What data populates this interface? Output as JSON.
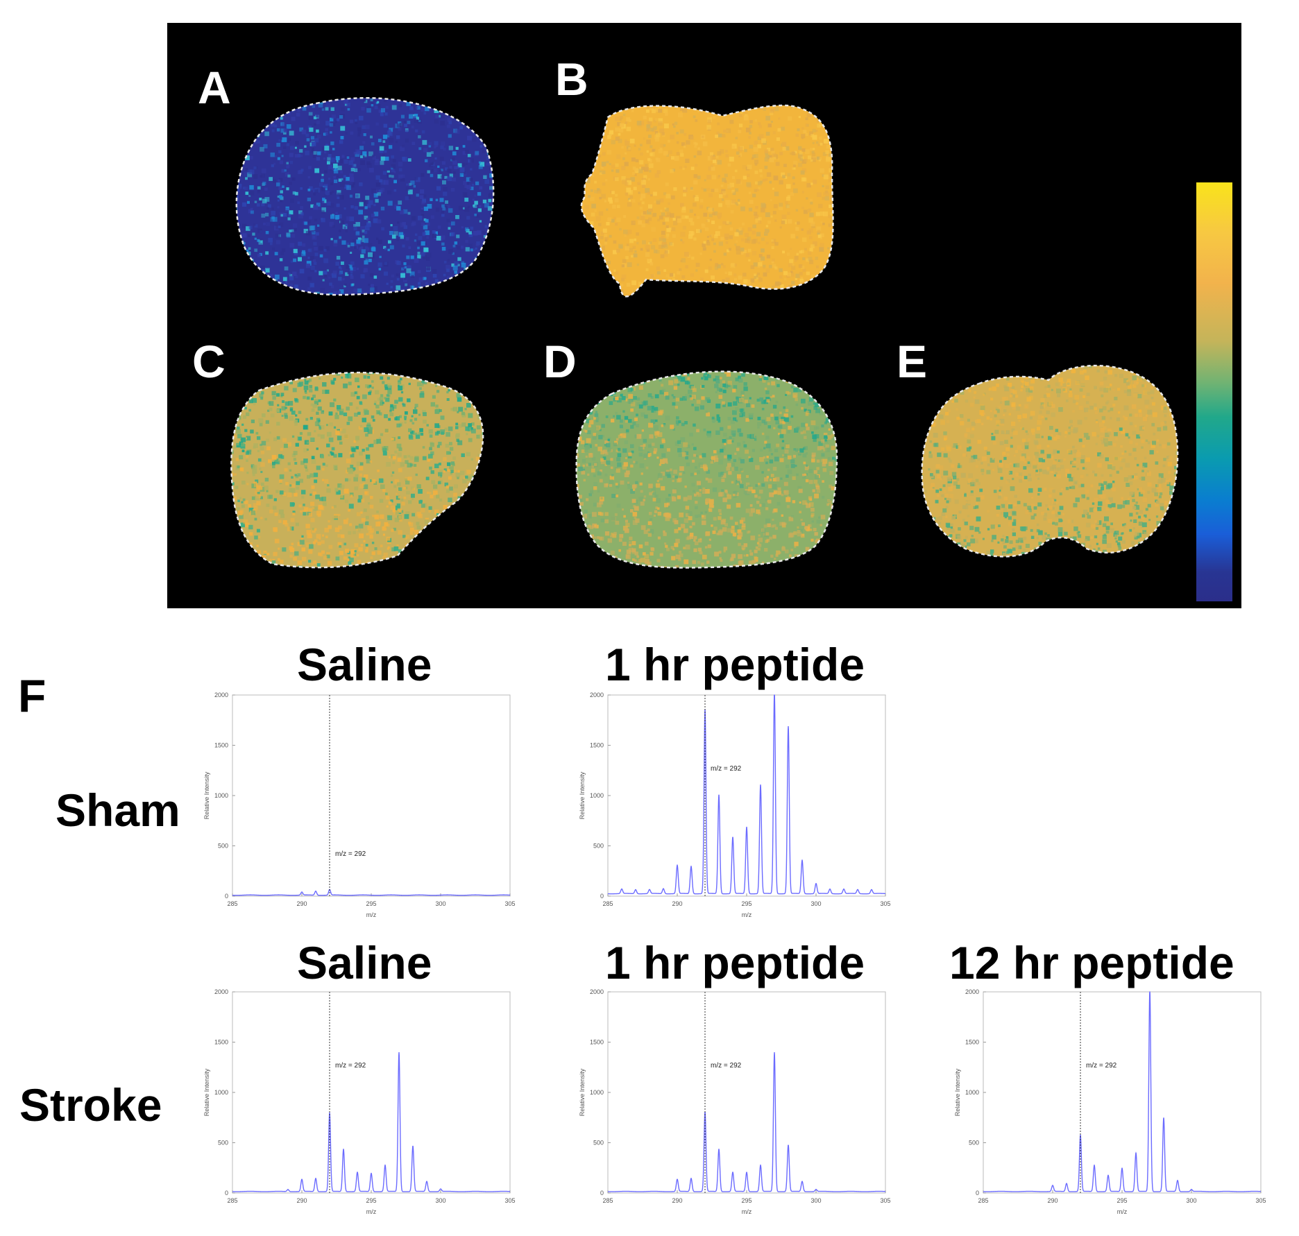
{
  "panel_letters": {
    "a": "A",
    "b": "B",
    "c": "C",
    "d": "D",
    "e": "E",
    "f": "F"
  },
  "colorbar": {
    "top_color": "#f9e31b",
    "bottom_color": "#2b2e8a"
  },
  "sections": {
    "a": {
      "base": "#2e3397",
      "noise": [
        "#2c2f8f",
        "#333ba6",
        "#2e44b0",
        "#1f8bd8",
        "#36c0d6"
      ]
    },
    "b": {
      "base": "#f2b53c",
      "noise": [
        "#f5bd45",
        "#eaae45",
        "#d6b054",
        "#f9c84a",
        "#e0a94a"
      ]
    },
    "c": {
      "base": "#c8b05a",
      "noise": [
        "#1fa88a",
        "#6fb070",
        "#f2b040",
        "#a9b262",
        "#38ae88"
      ]
    },
    "d": {
      "base": "#8cb06a",
      "noise": [
        "#2aa98a",
        "#56aa80",
        "#d1ad58",
        "#79ad72",
        "#e8b048"
      ]
    },
    "e": {
      "base": "#d6b152",
      "noise": [
        "#f0b440",
        "#9fb166",
        "#4fae80",
        "#e5b14b",
        "#c0b05e"
      ]
    }
  },
  "row_labels": {
    "sham": "Sham",
    "stroke": "Stroke"
  },
  "column_titles": {
    "sham_saline": "Saline",
    "sham_1hr": "1 hr peptide",
    "stroke_saline": "Saline",
    "stroke_1hr": "1 hr peptide",
    "stroke_12hr": "12 hr peptide"
  },
  "chart_data": [
    {
      "id": "sham_saline",
      "type": "line",
      "title": "Saline",
      "xlabel": "m/z",
      "ylabel": "Relative Intensity",
      "xlim": [
        285,
        305
      ],
      "ylim": [
        0,
        2000
      ],
      "xticks": [
        285,
        290,
        295,
        300,
        305
      ],
      "yticks": [
        0,
        500,
        1000,
        1500,
        2000
      ],
      "marker_x": 292,
      "annotation": "m/z = 292",
      "line_color": "#6b6bff",
      "baseline": 10,
      "peaks": [
        [
          290,
          30
        ],
        [
          291,
          40
        ],
        [
          292,
          55
        ]
      ]
    },
    {
      "id": "sham_1hr",
      "type": "line",
      "title": "1 hr peptide",
      "xlabel": "m/z",
      "ylabel": "Relative Intensity",
      "xlim": [
        285,
        305
      ],
      "ylim": [
        0,
        2000
      ],
      "xticks": [
        285,
        290,
        295,
        300,
        305
      ],
      "yticks": [
        0,
        500,
        1000,
        1500,
        2000
      ],
      "marker_x": 292,
      "annotation": "m/z = 292",
      "line_color": "#6b6bff",
      "baseline": 25,
      "peaks": [
        [
          286,
          45
        ],
        [
          287,
          40
        ],
        [
          288,
          40
        ],
        [
          289,
          50
        ],
        [
          290,
          280
        ],
        [
          291,
          270
        ],
        [
          292,
          1830
        ],
        [
          293,
          980
        ],
        [
          294,
          560
        ],
        [
          295,
          660
        ],
        [
          296,
          1080
        ],
        [
          297,
          2000
        ],
        [
          298,
          1660
        ],
        [
          299,
          330
        ],
        [
          300,
          100
        ],
        [
          301,
          45
        ],
        [
          302,
          45
        ],
        [
          303,
          40
        ],
        [
          304,
          40
        ]
      ]
    },
    {
      "id": "stroke_saline",
      "type": "line",
      "title": "Saline",
      "xlabel": "m/z",
      "ylabel": "Relative Intensity",
      "xlim": [
        285,
        305
      ],
      "ylim": [
        0,
        2000
      ],
      "xticks": [
        285,
        290,
        295,
        300,
        305
      ],
      "yticks": [
        0,
        500,
        1000,
        1500,
        2000
      ],
      "marker_x": 292,
      "annotation": "m/z = 292",
      "line_color": "#6b6bff",
      "baseline": 15,
      "peaks": [
        [
          289,
          20
        ],
        [
          290,
          120
        ],
        [
          291,
          130
        ],
        [
          292,
          780
        ],
        [
          293,
          420
        ],
        [
          294,
          190
        ],
        [
          295,
          180
        ],
        [
          296,
          260
        ],
        [
          297,
          1380
        ],
        [
          298,
          450
        ],
        [
          299,
          100
        ],
        [
          300,
          25
        ]
      ]
    },
    {
      "id": "stroke_1hr",
      "type": "line",
      "title": "1 hr peptide",
      "xlabel": "m/z",
      "ylabel": "Relative Intensity",
      "xlim": [
        285,
        305
      ],
      "ylim": [
        0,
        2000
      ],
      "xticks": [
        285,
        290,
        295,
        300,
        305
      ],
      "yticks": [
        0,
        500,
        1000,
        1500,
        2000
      ],
      "marker_x": 292,
      "annotation": "m/z = 292",
      "line_color": "#6b6bff",
      "baseline": 15,
      "peaks": [
        [
          290,
          120
        ],
        [
          291,
          130
        ],
        [
          292,
          790
        ],
        [
          293,
          420
        ],
        [
          294,
          190
        ],
        [
          295,
          190
        ],
        [
          296,
          260
        ],
        [
          297,
          1380
        ],
        [
          298,
          460
        ],
        [
          299,
          100
        ],
        [
          300,
          20
        ]
      ]
    },
    {
      "id": "stroke_12hr",
      "type": "line",
      "title": "12 hr peptide",
      "xlabel": "m/z",
      "ylabel": "Relative Intensity",
      "xlim": [
        285,
        305
      ],
      "ylim": [
        0,
        2000
      ],
      "xticks": [
        285,
        290,
        295,
        300,
        305
      ],
      "yticks": [
        0,
        500,
        1000,
        1500,
        2000
      ],
      "marker_x": 292,
      "annotation": "m/z = 292",
      "line_color": "#6b6bff",
      "baseline": 15,
      "peaks": [
        [
          290,
          60
        ],
        [
          291,
          80
        ],
        [
          292,
          560
        ],
        [
          293,
          260
        ],
        [
          294,
          160
        ],
        [
          295,
          230
        ],
        [
          296,
          380
        ],
        [
          297,
          2000
        ],
        [
          298,
          730
        ],
        [
          299,
          110
        ],
        [
          300,
          20
        ]
      ]
    }
  ]
}
